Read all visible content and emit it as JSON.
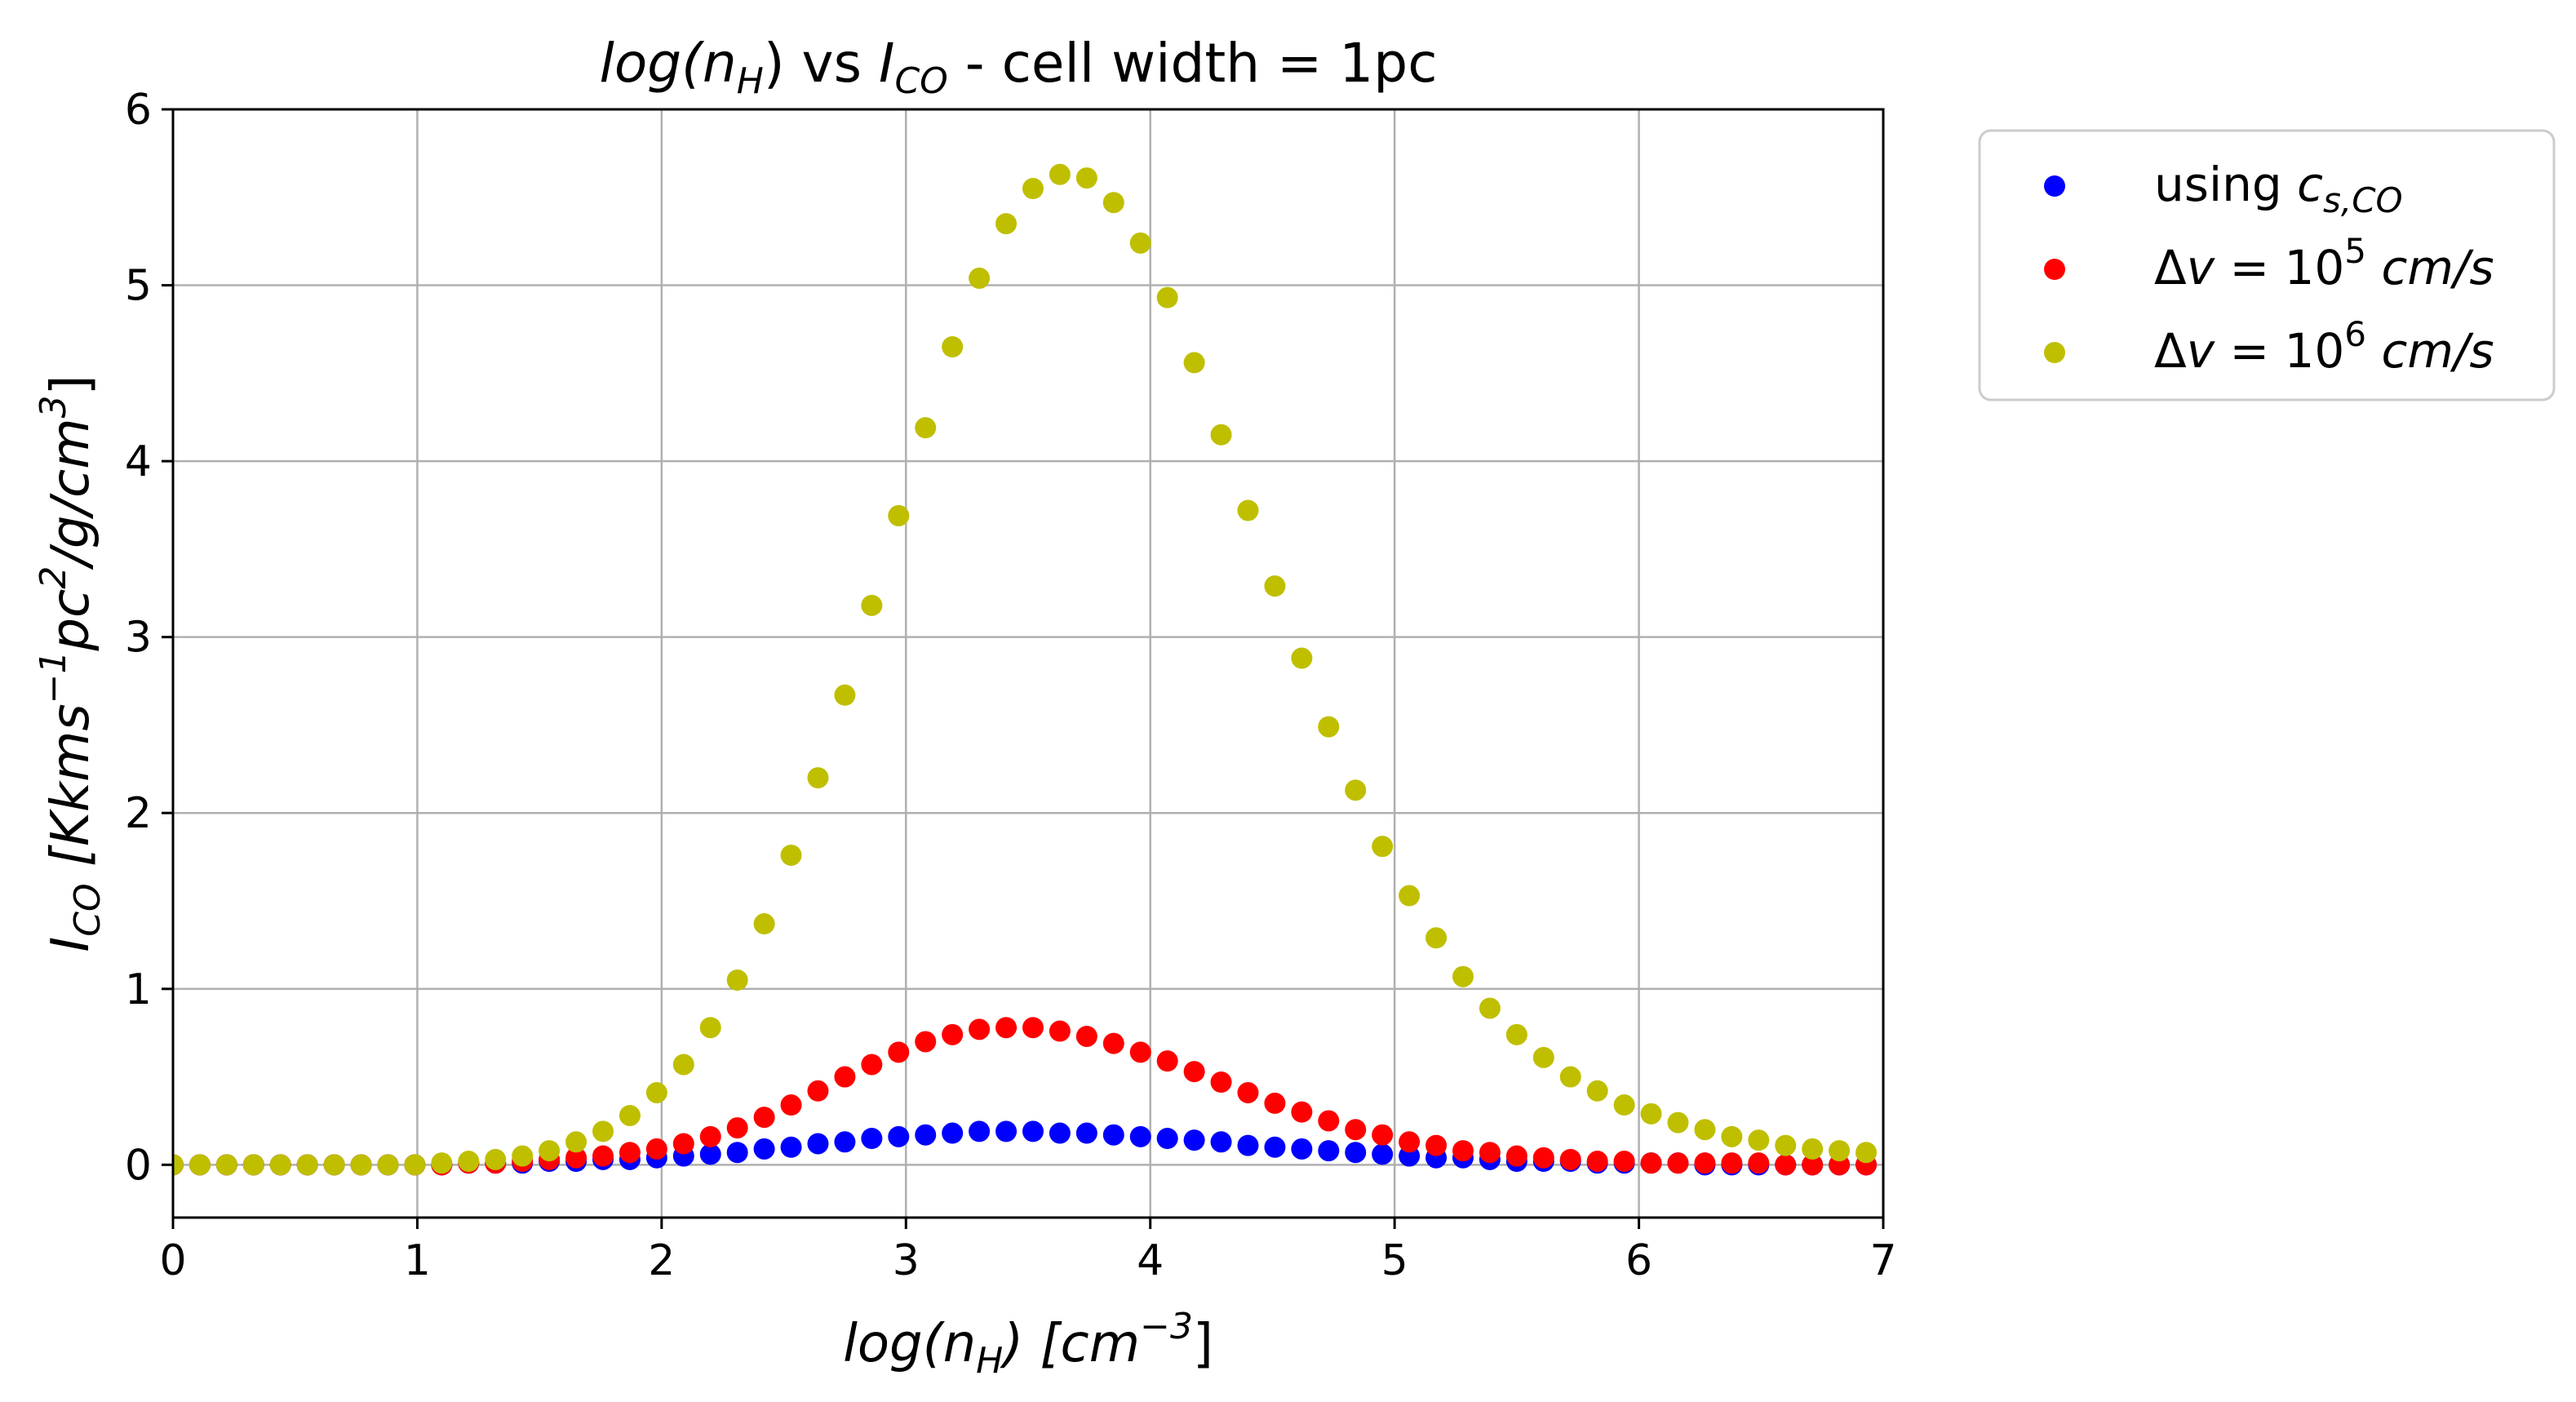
{
  "chart_data": {
    "type": "scatter",
    "title": {
      "prefix": "log(",
      "n_symbol": "n",
      "n_sub": "H",
      "mid": ") vs ",
      "i_symbol": "I",
      "i_sub": "CO",
      "suffix": " - cell width = 1pc"
    },
    "xlabel": {
      "prefix": "log(",
      "n_symbol": "n",
      "n_sub": "H",
      "suffix": ") [cm",
      "exp": "−3",
      "close": "]"
    },
    "ylabel": {
      "i_symbol": "I",
      "i_sub": "CO",
      "bracket_open": " [Kkms",
      "exp1": "−1",
      "mid": "pc",
      "exp2": "2",
      "tail": "/g/cm",
      "exp3": "3",
      "bracket_close": "]"
    },
    "xlim": [
      0,
      7
    ],
    "ylim": [
      -0.3,
      6
    ],
    "xticks": [
      "0",
      "1",
      "2",
      "3",
      "4",
      "5",
      "6",
      "7"
    ],
    "yticks": [
      "0",
      "1",
      "2",
      "3",
      "4",
      "5",
      "6"
    ],
    "grid": true,
    "legend_position": "outside upper right",
    "x": [
      0.0,
      0.11,
      0.22,
      0.33,
      0.44,
      0.55,
      0.66,
      0.77,
      0.88,
      0.99,
      1.1,
      1.21,
      1.32,
      1.43,
      1.54,
      1.65,
      1.76,
      1.87,
      1.98,
      2.09,
      2.2,
      2.31,
      2.42,
      2.53,
      2.64,
      2.75,
      2.86,
      2.97,
      3.08,
      3.19,
      3.3,
      3.41,
      3.52,
      3.63,
      3.74,
      3.85,
      3.96,
      4.07,
      4.18,
      4.29,
      4.4,
      4.51,
      4.62,
      4.73,
      4.84,
      4.95,
      5.06,
      5.17,
      5.28,
      5.39,
      5.5,
      5.61,
      5.72,
      5.83,
      5.94,
      6.05,
      6.16,
      6.27,
      6.38,
      6.49,
      6.6,
      6.71,
      6.82,
      6.93
    ],
    "series": [
      {
        "name": "using c_{s,CO}",
        "legend": {
          "prefix": "using ",
          "symbol": "c",
          "sub": "s,CO"
        },
        "color": "#0000ff",
        "values": [
          0,
          0,
          0,
          0,
          0,
          0,
          0,
          0,
          0,
          0,
          0,
          0.01,
          0.01,
          0.01,
          0.02,
          0.02,
          0.03,
          0.03,
          0.04,
          0.05,
          0.06,
          0.07,
          0.09,
          0.1,
          0.12,
          0.13,
          0.15,
          0.16,
          0.17,
          0.18,
          0.19,
          0.19,
          0.19,
          0.18,
          0.18,
          0.17,
          0.16,
          0.15,
          0.14,
          0.13,
          0.11,
          0.1,
          0.09,
          0.08,
          0.07,
          0.06,
          0.05,
          0.04,
          0.04,
          0.03,
          0.02,
          0.02,
          0.02,
          0.01,
          0.01,
          0.01,
          0.01,
          0,
          0,
          0,
          0,
          0,
          0,
          0
        ]
      },
      {
        "name": "Δv = 10^5 cm/s",
        "legend": {
          "prefix": "Δ",
          "symbol": "v",
          "eq": " = 10",
          "exp": "5",
          "unit": " cm/s"
        },
        "color": "#ff0000",
        "values": [
          0,
          0,
          0,
          0,
          0,
          0,
          0,
          0,
          0,
          0,
          0,
          0.01,
          0.01,
          0.02,
          0.03,
          0.04,
          0.05,
          0.07,
          0.09,
          0.12,
          0.16,
          0.21,
          0.27,
          0.34,
          0.42,
          0.5,
          0.57,
          0.64,
          0.7,
          0.74,
          0.77,
          0.78,
          0.78,
          0.76,
          0.73,
          0.69,
          0.64,
          0.59,
          0.53,
          0.47,
          0.41,
          0.35,
          0.3,
          0.25,
          0.2,
          0.17,
          0.13,
          0.11,
          0.08,
          0.07,
          0.05,
          0.04,
          0.03,
          0.02,
          0.02,
          0.01,
          0.01,
          0.01,
          0.01,
          0.01,
          0,
          0,
          0,
          0
        ]
      },
      {
        "name": "Δv = 10^6 cm/s",
        "legend": {
          "prefix": "Δ",
          "symbol": "v",
          "eq": " = 10",
          "exp": "6",
          "unit": " cm/s"
        },
        "color": "#bfbf00",
        "values": [
          0,
          0,
          0,
          0,
          0,
          0,
          0,
          0,
          0,
          0,
          0.01,
          0.02,
          0.03,
          0.05,
          0.08,
          0.13,
          0.19,
          0.28,
          0.41,
          0.57,
          0.78,
          1.05,
          1.37,
          1.76,
          2.2,
          2.67,
          3.18,
          3.69,
          4.19,
          4.65,
          5.04,
          5.35,
          5.55,
          5.63,
          5.61,
          5.47,
          5.24,
          4.93,
          4.56,
          4.15,
          3.72,
          3.29,
          2.88,
          2.49,
          2.13,
          1.81,
          1.53,
          1.29,
          1.07,
          0.89,
          0.74,
          0.61,
          0.5,
          0.42,
          0.34,
          0.29,
          0.24,
          0.2,
          0.16,
          0.14,
          0.11,
          0.09,
          0.08,
          0.07
        ]
      }
    ]
  }
}
